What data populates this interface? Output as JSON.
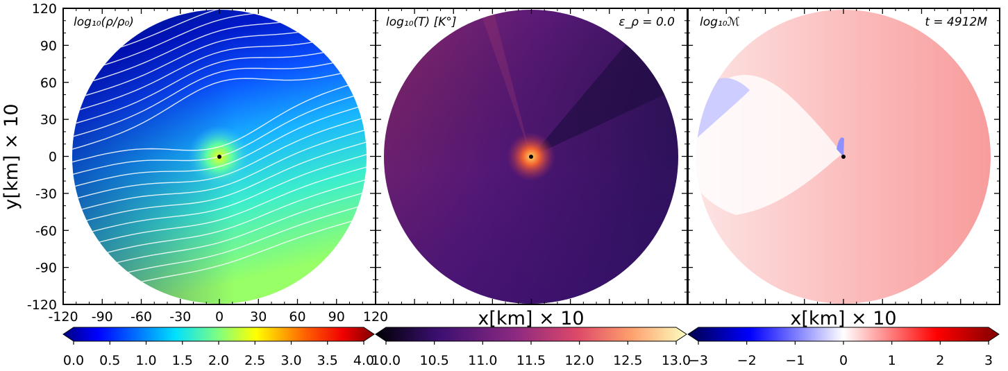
{
  "chart_data": {
    "type": "heatmap",
    "panels": [
      {
        "label": "log₁₀(ρ/ρ₀)",
        "label_sub": "10",
        "annotation": "",
        "colormap": "jet",
        "xlabel": "",
        "ylabel": "y[km] × 10",
        "xlim": [
          -120,
          120
        ],
        "ylim": [
          -120,
          120
        ],
        "xticks": [
          "-120",
          "-90",
          "-60",
          "-30",
          "0",
          "30",
          "60",
          "90",
          "120"
        ],
        "yticks": [
          "120",
          "90",
          "60",
          "30",
          "0",
          "-30",
          "-60",
          "-90",
          "-120"
        ],
        "streamlines": true,
        "colorbar": {
          "min": 0.0,
          "max": 4.0,
          "ticks": [
            "0.0",
            "0.5",
            "1.0",
            "1.5",
            "2.0",
            "2.5",
            "3.0",
            "3.5",
            "4.0"
          ]
        }
      },
      {
        "label": "log₁₀(T) [K°]",
        "annotation": "ε_ρ = 0.0",
        "colormap": "magma",
        "xlabel": "x[km] × 10",
        "xlim": [
          -120,
          120
        ],
        "ylim": [
          -120,
          120
        ],
        "streamlines": false,
        "colorbar": {
          "min": 10.0,
          "max": 13.0,
          "ticks": [
            "10.0",
            "10.5",
            "11.0",
            "11.5",
            "12.0",
            "12.5",
            "13.0"
          ]
        }
      },
      {
        "label": "log₁₀ℳ",
        "annotation": "t = 4912M",
        "colormap": "seismic",
        "xlabel": "x[km] × 10",
        "xlim": [
          -120,
          120
        ],
        "ylim": [
          -120,
          120
        ],
        "streamlines": false,
        "colorbar": {
          "min": -3,
          "max": 3,
          "ticks": [
            "−3",
            "−2",
            "−1",
            "0",
            "1",
            "2",
            "3"
          ]
        }
      }
    ],
    "domain_radius": 120,
    "black_hole_position": [
      0,
      0
    ],
    "grid": false
  }
}
